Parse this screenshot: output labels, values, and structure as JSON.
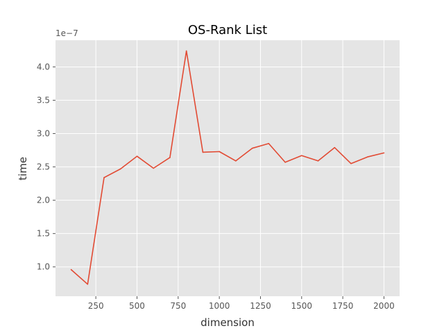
{
  "chart_data": {
    "type": "line",
    "title": "OS-Rank List",
    "xlabel": "dimension",
    "ylabel": "time",
    "y_offset_label": "1e−7",
    "y_scale_factor": 1e-07,
    "xlim": [
      5,
      2095
    ],
    "ylim": [
      0.56,
      4.4
    ],
    "xticks": [
      250,
      500,
      750,
      1000,
      1250,
      1500,
      1750,
      2000
    ],
    "yticks": [
      1.0,
      1.5,
      2.0,
      2.5,
      3.0,
      3.5,
      4.0
    ],
    "ytick_labels": [
      "1.0",
      "1.5",
      "2.0",
      "2.5",
      "3.0",
      "3.5",
      "4.0"
    ],
    "grid": true,
    "series": [
      {
        "color": "#E24A33",
        "x": [
          100,
          200,
          300,
          400,
          500,
          600,
          700,
          800,
          900,
          1000,
          1100,
          1200,
          1300,
          1400,
          1500,
          1600,
          1700,
          1800,
          1900,
          2000
        ],
        "y": [
          0.96,
          0.74,
          2.34,
          2.47,
          2.66,
          2.48,
          2.64,
          4.24,
          2.72,
          2.73,
          2.59,
          2.78,
          2.85,
          2.57,
          2.67,
          2.59,
          2.79,
          2.55,
          2.65,
          2.71
        ]
      }
    ]
  }
}
